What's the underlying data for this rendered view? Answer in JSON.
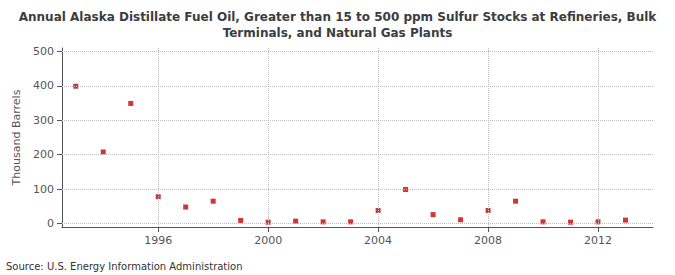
{
  "chart_data": {
    "type": "scatter",
    "title": "Annual Alaska Distillate Fuel Oil, Greater than 15 to 500 ppm Sulfur Stocks at Refineries, Bulk\nTerminals, and Natural Gas Plants",
    "ylabel": "Thousand Barrels",
    "annotation": "Source: U.S. Energy Information Administration",
    "x": [
      1993,
      1994,
      1995,
      1996,
      1997,
      1998,
      1999,
      2000,
      2001,
      2002,
      2003,
      2004,
      2005,
      2006,
      2007,
      2008,
      2009,
      2010,
      2011,
      2012,
      2013
    ],
    "values": [
      399,
      208,
      349,
      78,
      48,
      65,
      9,
      4,
      7,
      5,
      5,
      38,
      99,
      26,
      11,
      38,
      65,
      5,
      4,
      5,
      10
    ],
    "color": "#cc0000",
    "marker": "square",
    "xlim": [
      1992.5,
      2014.0
    ],
    "ylim": [
      -10,
      510
    ],
    "xticks": [
      1996,
      2000,
      2004,
      2008,
      2012
    ],
    "yticks": [
      0,
      100,
      200,
      300,
      400,
      500
    ],
    "grid": true
  }
}
